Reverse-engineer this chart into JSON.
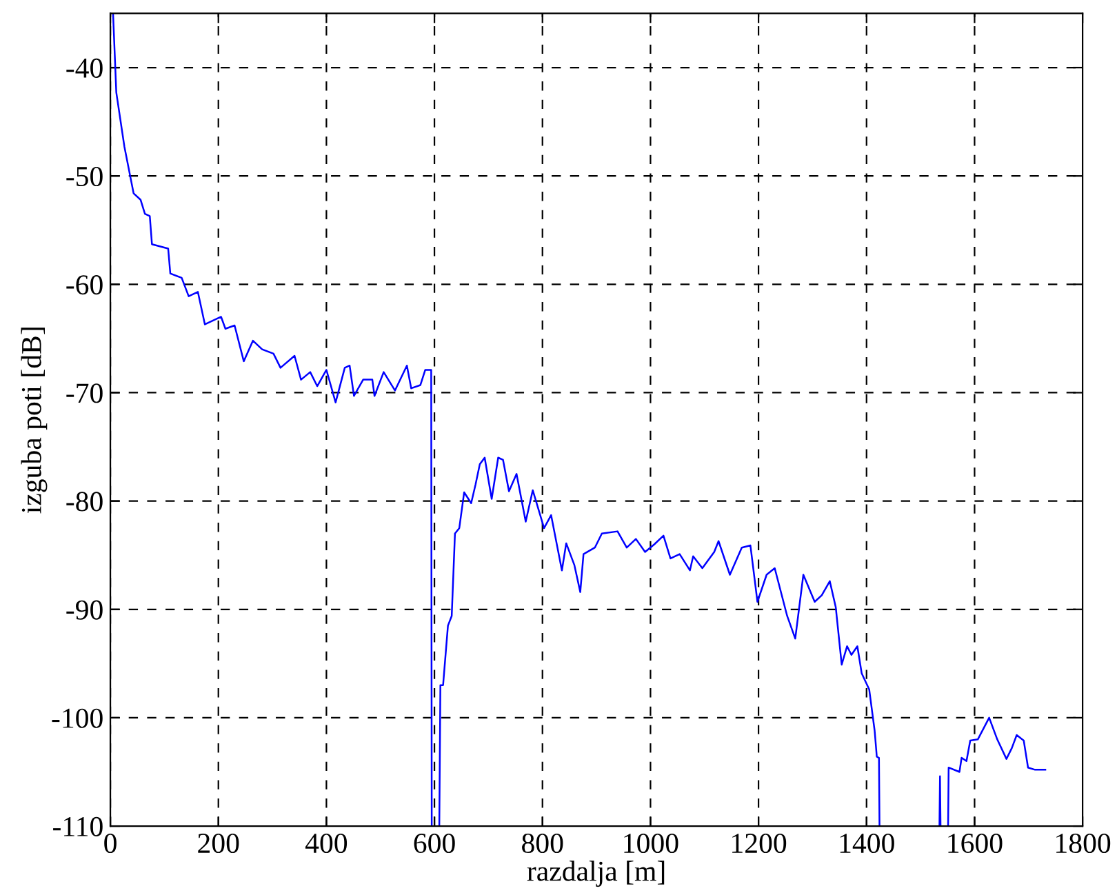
{
  "chart_data": {
    "type": "line",
    "xlabel": "razdalja [m]",
    "ylabel": "izguba poti [dB]",
    "xlim": [
      0,
      1800
    ],
    "ylim": [
      -110,
      -35
    ],
    "xticks": [
      0,
      200,
      400,
      600,
      800,
      1000,
      1200,
      1400,
      1600,
      1800
    ],
    "yticks": [
      -110,
      -100,
      -90,
      -80,
      -70,
      -60,
      -50,
      -40
    ],
    "grid": true,
    "line_style": "solid",
    "marker": "none",
    "series": [
      {
        "color": "#0000ff",
        "x": [
          5,
          11,
          26,
          43,
          56,
          64,
          73,
          77,
          107,
          111,
          132,
          145,
          162,
          175,
          192,
          205,
          213,
          230,
          247,
          264,
          281,
          302,
          315,
          341,
          353,
          370,
          383,
          400,
          417,
          434,
          443,
          451,
          468,
          485,
          489,
          506,
          527,
          549,
          557,
          574,
          583,
          594,
          595,
          600,
          609,
          611,
          616,
          625,
          632,
          638,
          646,
          655,
          668,
          676,
          684,
          693,
          706,
          718,
          727,
          738,
          752,
          769,
          782,
          803,
          816,
          836,
          844,
          859,
          870,
          876,
          897,
          910,
          939,
          956,
          973,
          990,
          1007,
          1024,
          1037,
          1054,
          1073,
          1079,
          1096,
          1118,
          1126,
          1147,
          1169,
          1185,
          1198,
          1215,
          1230,
          1253,
          1268,
          1283,
          1304,
          1317,
          1332,
          1343,
          1354,
          1364,
          1372,
          1383,
          1391,
          1405,
          1415,
          1419,
          1423,
          1424,
          1430,
          1535,
          1536,
          1537,
          1545,
          1551,
          1552,
          1572,
          1576,
          1585,
          1592,
          1606,
          1627,
          1642,
          1659,
          1669,
          1678,
          1691,
          1699,
          1712,
          1731
        ],
        "values": [
          -35,
          -42.3,
          -47.3,
          -51.6,
          -52.2,
          -53.5,
          -53.7,
          -56.3,
          -56.7,
          -59,
          -59.4,
          -61.1,
          -60.7,
          -63.7,
          -63.3,
          -63,
          -64.1,
          -63.8,
          -67.1,
          -65.2,
          -66,
          -66.4,
          -67.7,
          -66.6,
          -68.8,
          -68.1,
          -69.4,
          -67.9,
          -70.9,
          -67.7,
          -67.5,
          -70.3,
          -68.8,
          -68.8,
          -70.3,
          -68.1,
          -69.8,
          -67.5,
          -69.6,
          -69.3,
          -67.9,
          -67.9,
          -110,
          null,
          -110,
          -97,
          -97,
          -91.5,
          -90.6,
          -83,
          -82.5,
          -79.2,
          -80.2,
          -78.5,
          -76.6,
          -76,
          -79.8,
          -76,
          -76.2,
          -79.1,
          -77.5,
          -81.9,
          -79,
          -82.5,
          -81.3,
          -86.4,
          -83.9,
          -85.9,
          -88.4,
          -84.9,
          -84.3,
          -83,
          -82.8,
          -84.3,
          -83.5,
          -84.7,
          -84,
          -83.2,
          -85.3,
          -84.9,
          -86.4,
          -85.1,
          -86.2,
          -84.7,
          -83.7,
          -86.8,
          -84.3,
          -84.1,
          -89.3,
          -86.8,
          -86.2,
          -90.6,
          -92.7,
          -86.8,
          -89.3,
          -88.7,
          -87.4,
          -89.8,
          -95.1,
          -93.4,
          -94.2,
          -93.4,
          -95.9,
          -97.4,
          -101.2,
          -103.6,
          -103.7,
          -110,
          null,
          -110,
          -105.4,
          -110,
          null,
          -110,
          -104.6,
          -105,
          -103.7,
          -104,
          -102.1,
          -102,
          -100,
          -102,
          -103.8,
          -102.8,
          -101.6,
          -102.1,
          -104.6,
          -104.8,
          -104.8
        ]
      }
    ]
  }
}
